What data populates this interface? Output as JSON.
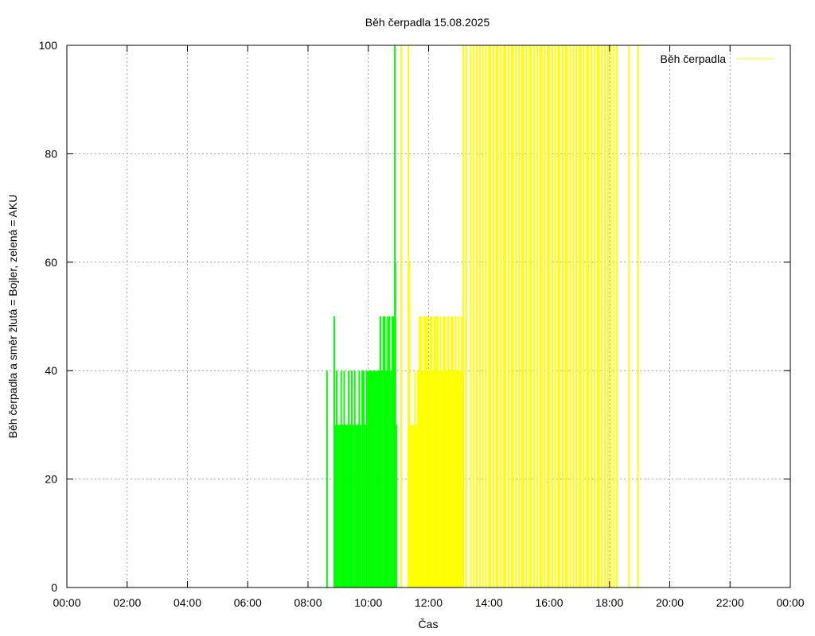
{
  "chart_data": {
    "type": "impulses",
    "title": "Běh čerpadla 15.08.2025",
    "x_label": "Čas",
    "y_label": "Běh čerpadla a směr žlutá = Bojler, zelená = AKU",
    "xlim": [
      0,
      24
    ],
    "xticks": [
      {
        "value": 0,
        "label": "00:00"
      },
      {
        "value": 2,
        "label": "02:00"
      },
      {
        "value": 4,
        "label": "04:00"
      },
      {
        "value": 6,
        "label": "06:00"
      },
      {
        "value": 8,
        "label": "08:00"
      },
      {
        "value": 10,
        "label": "10:00"
      },
      {
        "value": 12,
        "label": "12:00"
      },
      {
        "value": 14,
        "label": "14:00"
      },
      {
        "value": 16,
        "label": "16:00"
      },
      {
        "value": 18,
        "label": "18:00"
      },
      {
        "value": 20,
        "label": "20:00"
      },
      {
        "value": 22,
        "label": "22:00"
      },
      {
        "value": 24,
        "label": "00:00"
      }
    ],
    "ylim": [
      0,
      100
    ],
    "yticks": [
      0,
      20,
      40,
      60,
      80,
      100
    ],
    "grid": true,
    "legend": "top-right",
    "series": [
      {
        "color": "#00ff00",
        "x": [
          8.63,
          8.87,
          8.9,
          8.95,
          9.0,
          9.05,
          9.1,
          9.15,
          9.2,
          9.25,
          9.3,
          9.35,
          9.4,
          9.45,
          9.5,
          9.55,
          9.6,
          9.65,
          9.7,
          9.75,
          9.8,
          9.85,
          9.9,
          9.95,
          10.0,
          10.05,
          10.1,
          10.15,
          10.2,
          10.25,
          10.3,
          10.35,
          10.4,
          10.45,
          10.5,
          10.55,
          10.6,
          10.65,
          10.7,
          10.75,
          10.8,
          10.85,
          10.88,
          10.9,
          10.93
        ],
        "values": [
          40,
          50,
          30,
          40,
          30,
          30,
          40,
          30,
          40,
          30,
          30,
          40,
          30,
          40,
          30,
          40,
          30,
          30,
          40,
          30,
          40,
          40,
          30,
          40,
          40,
          40,
          40,
          40,
          40,
          40,
          40,
          40,
          50,
          40,
          50,
          50,
          40,
          50,
          50,
          40,
          50,
          50,
          100,
          60,
          30
        ]
      },
      {
        "name": "Běh čerpadla",
        "color": "#ffff00",
        "x": [
          11.09,
          11.33,
          11.36,
          11.4,
          11.45,
          11.5,
          11.55,
          11.6,
          11.65,
          11.7,
          11.75,
          11.8,
          11.85,
          11.9,
          11.95,
          12.0,
          12.05,
          12.1,
          12.15,
          12.2,
          12.25,
          12.3,
          12.35,
          12.4,
          12.45,
          12.5,
          12.55,
          12.6,
          12.65,
          12.7,
          12.75,
          12.8,
          12.85,
          12.9,
          12.95,
          13.0,
          13.05,
          13.1,
          13.15,
          13.25,
          13.4,
          13.5,
          13.6,
          13.7,
          13.8,
          13.9,
          14.0,
          14.05,
          14.15,
          14.25,
          14.3,
          14.4,
          14.5,
          14.55,
          14.65,
          14.75,
          14.8,
          14.9,
          15.0,
          15.1,
          15.15,
          15.25,
          15.35,
          15.4,
          15.5,
          15.6,
          15.7,
          15.75,
          15.85,
          15.95,
          16.0,
          16.1,
          16.2,
          16.3,
          16.35,
          16.45,
          16.55,
          16.6,
          16.7,
          16.8,
          16.9,
          17.0,
          17.05,
          17.15,
          17.25,
          17.3,
          17.4,
          17.5,
          17.6,
          17.65,
          17.75,
          17.85,
          17.95,
          18.05,
          18.15,
          18.25,
          18.65,
          18.95
        ],
        "values": [
          100,
          100,
          60,
          30,
          30,
          30,
          40,
          30,
          40,
          50,
          50,
          40,
          50,
          50,
          50,
          40,
          50,
          50,
          40,
          50,
          50,
          50,
          40,
          50,
          40,
          50,
          50,
          40,
          50,
          40,
          50,
          50,
          40,
          50,
          40,
          50,
          40,
          50,
          100,
          100,
          100,
          100,
          100,
          100,
          100,
          100,
          100,
          100,
          100,
          100,
          100,
          100,
          100,
          100,
          100,
          100,
          100,
          100,
          100,
          100,
          100,
          100,
          100,
          100,
          100,
          100,
          100,
          100,
          100,
          100,
          100,
          100,
          100,
          100,
          100,
          100,
          100,
          100,
          100,
          100,
          100,
          100,
          100,
          100,
          100,
          100,
          100,
          100,
          100,
          100,
          100,
          100,
          100,
          100,
          100,
          100,
          100,
          100
        ]
      }
    ]
  }
}
